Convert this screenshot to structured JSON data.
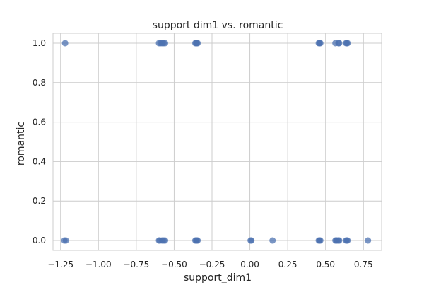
{
  "chart_data": {
    "type": "scatter",
    "title": "support dim1 vs. romantic",
    "xlabel": "support_dim1",
    "ylabel": "romantic",
    "xlim": [
      -1.3,
      0.87
    ],
    "ylim": [
      -0.05,
      1.05
    ],
    "xticks": [
      -1.25,
      -1.0,
      -0.75,
      -0.5,
      -0.25,
      0.0,
      0.25,
      0.5,
      0.75
    ],
    "xtick_labels": [
      "−1.25",
      "−1.00",
      "−0.75",
      "−0.50",
      "−0.25",
      "0.00",
      "0.25",
      "0.50",
      "0.75"
    ],
    "yticks": [
      0.0,
      0.2,
      0.4,
      0.6,
      0.8,
      1.0
    ],
    "ytick_labels": [
      "0.0",
      "0.2",
      "0.4",
      "0.6",
      "0.8",
      "1.0"
    ],
    "grid": true,
    "point_color": "#4c72b0",
    "points": [
      {
        "x": -1.22,
        "y": 1
      },
      {
        "x": -0.6,
        "y": 1
      },
      {
        "x": -0.59,
        "y": 1
      },
      {
        "x": -0.58,
        "y": 1
      },
      {
        "x": -0.57,
        "y": 1
      },
      {
        "x": -0.56,
        "y": 1
      },
      {
        "x": -0.36,
        "y": 1
      },
      {
        "x": -0.355,
        "y": 1
      },
      {
        "x": -0.35,
        "y": 1
      },
      {
        "x": -0.345,
        "y": 1
      },
      {
        "x": 0.455,
        "y": 1
      },
      {
        "x": 0.46,
        "y": 1
      },
      {
        "x": 0.465,
        "y": 1
      },
      {
        "x": 0.565,
        "y": 1
      },
      {
        "x": 0.585,
        "y": 1
      },
      {
        "x": 0.59,
        "y": 1
      },
      {
        "x": 0.635,
        "y": 1
      },
      {
        "x": 0.64,
        "y": 1
      },
      {
        "x": 0.645,
        "y": 1
      },
      {
        "x": -1.225,
        "y": 0
      },
      {
        "x": -1.215,
        "y": 0
      },
      {
        "x": -0.6,
        "y": 0
      },
      {
        "x": -0.595,
        "y": 0
      },
      {
        "x": -0.58,
        "y": 0
      },
      {
        "x": -0.57,
        "y": 0
      },
      {
        "x": -0.56,
        "y": 0
      },
      {
        "x": -0.36,
        "y": 0
      },
      {
        "x": -0.355,
        "y": 0
      },
      {
        "x": -0.35,
        "y": 0
      },
      {
        "x": -0.345,
        "y": 0
      },
      {
        "x": 0.005,
        "y": 0
      },
      {
        "x": 0.01,
        "y": 0
      },
      {
        "x": 0.15,
        "y": 0
      },
      {
        "x": 0.455,
        "y": 0
      },
      {
        "x": 0.46,
        "y": 0
      },
      {
        "x": 0.465,
        "y": 0
      },
      {
        "x": 0.565,
        "y": 0
      },
      {
        "x": 0.57,
        "y": 0
      },
      {
        "x": 0.575,
        "y": 0
      },
      {
        "x": 0.585,
        "y": 0
      },
      {
        "x": 0.59,
        "y": 0
      },
      {
        "x": 0.635,
        "y": 0
      },
      {
        "x": 0.64,
        "y": 0
      },
      {
        "x": 0.645,
        "y": 0
      },
      {
        "x": 0.78,
        "y": 0
      }
    ]
  }
}
